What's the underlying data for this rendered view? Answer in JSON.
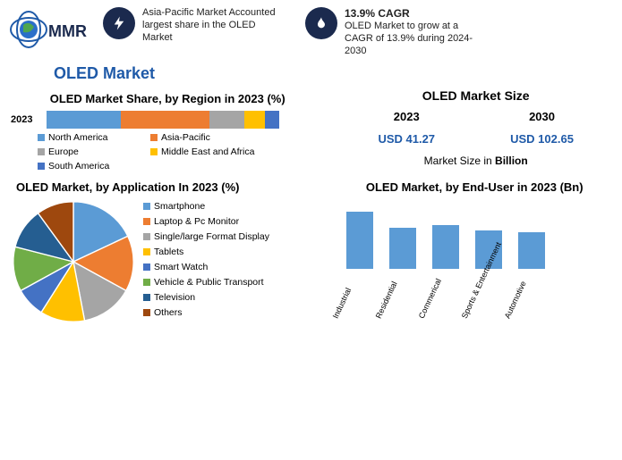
{
  "header": {
    "logo_text": "MMR",
    "callout1": {
      "icon_bg": "#1b2a4e",
      "icon_color": "#ffffff",
      "text": "Asia-Pacific Market Accounted largest share in the OLED Market"
    },
    "callout2": {
      "icon_bg": "#1b2a4e",
      "icon_color": "#ffffff",
      "title": "13.9% CAGR",
      "text": "OLED Market to grow at a CAGR of 13.9% during 2024-2030"
    }
  },
  "title": "OLED Market",
  "title_color": "#1f5aa8",
  "region_chart": {
    "title": "OLED Market Share, by Region in 2023 (%)",
    "year_label": "2023",
    "segments": [
      {
        "label": "North America",
        "pct": 32,
        "color": "#5b9bd5"
      },
      {
        "label": "Asia-Pacific",
        "pct": 38,
        "color": "#ed7d31"
      },
      {
        "label": "Europe",
        "pct": 15,
        "color": "#a5a5a5"
      },
      {
        "label": "Middle East and Africa",
        "pct": 9,
        "color": "#ffc000"
      },
      {
        "label": "South America",
        "pct": 6,
        "color": "#4472c4"
      }
    ]
  },
  "market_size": {
    "title": "OLED Market Size",
    "cols": [
      {
        "year": "2023",
        "value": "USD 41.27",
        "color": "#1f5aa8"
      },
      {
        "year": "2030",
        "value": "USD 102.65",
        "color": "#1f5aa8"
      }
    ],
    "subtitle_a": "Market Size in ",
    "subtitle_b": "Billion"
  },
  "pie_chart": {
    "title": "OLED Market, by Application In 2023 (%)",
    "slices": [
      {
        "label": "Smartphone",
        "pct": 18,
        "color": "#5b9bd5"
      },
      {
        "label": "Laptop & Pc Monitor",
        "pct": 15,
        "color": "#ed7d31"
      },
      {
        "label": "Single/large Format Display",
        "pct": 14,
        "color": "#a5a5a5"
      },
      {
        "label": "Tablets",
        "pct": 12,
        "color": "#ffc000"
      },
      {
        "label": "Smart Watch",
        "pct": 8,
        "color": "#4472c4"
      },
      {
        "label": "Vehicle & Public Transport",
        "pct": 12,
        "color": "#70ad47"
      },
      {
        "label": "Television",
        "pct": 11,
        "color": "#255e91"
      },
      {
        "label": "Others",
        "pct": 10,
        "color": "#9e480e"
      }
    ]
  },
  "bar_chart": {
    "title": "OLED Market, by End-User in 2023 (Bn)",
    "bar_color": "#5b9bd5",
    "ymax": 12,
    "bars": [
      {
        "label": "Industrial",
        "value": 11
      },
      {
        "label": "Residential",
        "value": 8
      },
      {
        "label": "Commerical",
        "value": 8.5
      },
      {
        "label": "Sports & Entertainment",
        "value": 7.5
      },
      {
        "label": "Automotive",
        "value": 7
      }
    ]
  }
}
